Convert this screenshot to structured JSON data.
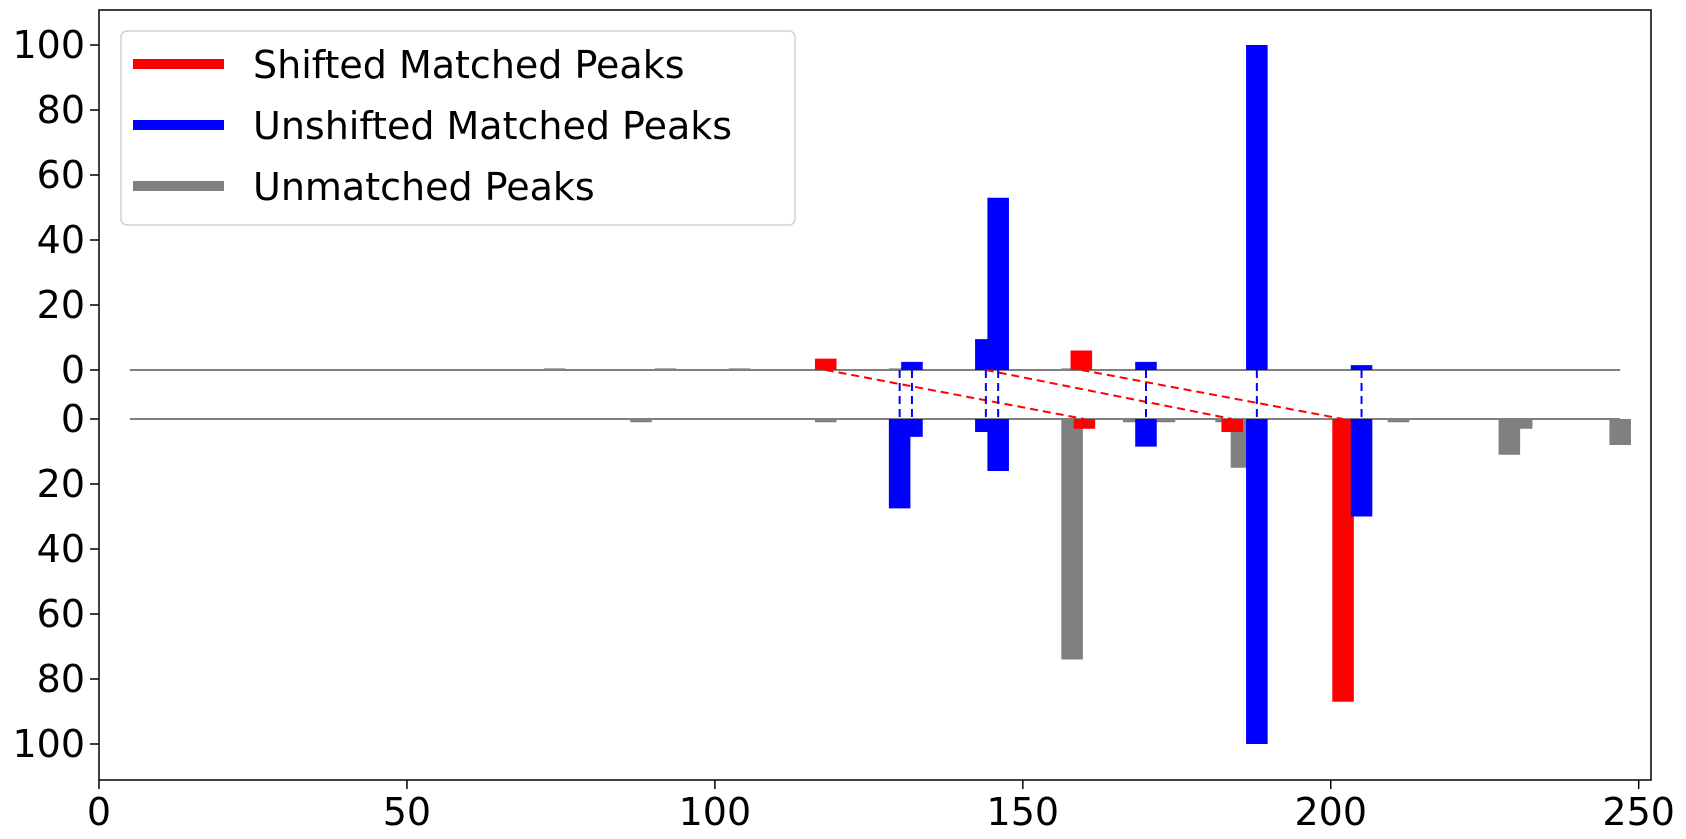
{
  "chart_data": {
    "type": "bar",
    "title": "",
    "xlabel": "",
    "ylabel": "",
    "xlim": [
      0,
      252
    ],
    "xticks": [
      0,
      50,
      100,
      150,
      200,
      250
    ],
    "top_panel": {
      "ylim": [
        0,
        110
      ],
      "yticks": [
        0,
        20,
        40,
        60,
        80,
        100
      ]
    },
    "bottom_panel": {
      "ylim": [
        0,
        110
      ],
      "yticks": [
        0,
        20,
        40,
        60,
        80,
        100
      ]
    },
    "bar_width": 3.5,
    "grid": false,
    "legend": {
      "position": "top-left",
      "entries": [
        {
          "label": "Shifted Matched Peaks",
          "color": "#ff0000"
        },
        {
          "label": "Unshifted Matched Peaks",
          "color": "#0000ff"
        },
        {
          "label": "Unmatched Peaks",
          "color": "#808080"
        }
      ]
    },
    "colors": {
      "shifted": "#ff0000",
      "unshifted": "#0000ff",
      "unmatched": "#808080",
      "baseline": "#808080"
    },
    "top_peaks": [
      {
        "x": 74,
        "y": 0.5,
        "category": "unmatched"
      },
      {
        "x": 92,
        "y": 0.5,
        "category": "unmatched"
      },
      {
        "x": 104,
        "y": 0.5,
        "category": "unmatched"
      },
      {
        "x": 118,
        "y": 3.5,
        "category": "shifted"
      },
      {
        "x": 130,
        "y": 0.5,
        "category": "unmatched"
      },
      {
        "x": 132,
        "y": 2.5,
        "category": "unshifted"
      },
      {
        "x": 144,
        "y": 9.5,
        "category": "unshifted"
      },
      {
        "x": 146,
        "y": 53,
        "category": "unshifted"
      },
      {
        "x": 158,
        "y": 0.5,
        "category": "unmatched"
      },
      {
        "x": 159.5,
        "y": 6,
        "category": "shifted"
      },
      {
        "x": 170,
        "y": 2.5,
        "category": "unshifted"
      },
      {
        "x": 188,
        "y": 100,
        "category": "unshifted"
      },
      {
        "x": 205,
        "y": 1.5,
        "category": "unshifted"
      }
    ],
    "bottom_peaks": [
      {
        "x": 88,
        "y": 1,
        "category": "unmatched"
      },
      {
        "x": 118,
        "y": 1,
        "category": "unmatched"
      },
      {
        "x": 130,
        "y": 27.5,
        "category": "unshifted"
      },
      {
        "x": 132,
        "y": 5.5,
        "category": "unshifted"
      },
      {
        "x": 144,
        "y": 4,
        "category": "unshifted"
      },
      {
        "x": 146,
        "y": 16,
        "category": "unshifted"
      },
      {
        "x": 158,
        "y": 74,
        "category": "unmatched"
      },
      {
        "x": 160,
        "y": 3,
        "category": "shifted"
      },
      {
        "x": 168,
        "y": 1,
        "category": "unmatched"
      },
      {
        "x": 170,
        "y": 8.5,
        "category": "unshifted"
      },
      {
        "x": 173,
        "y": 1,
        "category": "unmatched"
      },
      {
        "x": 183,
        "y": 1,
        "category": "unmatched"
      },
      {
        "x": 184,
        "y": 4,
        "category": "shifted"
      },
      {
        "x": 185.5,
        "y": 15,
        "category": "unmatched"
      },
      {
        "x": 188,
        "y": 100,
        "category": "unshifted"
      },
      {
        "x": 202,
        "y": 87,
        "category": "shifted"
      },
      {
        "x": 205,
        "y": 30,
        "category": "unshifted"
      },
      {
        "x": 211,
        "y": 1,
        "category": "unmatched"
      },
      {
        "x": 229,
        "y": 11,
        "category": "unmatched"
      },
      {
        "x": 231,
        "y": 3,
        "category": "unmatched"
      },
      {
        "x": 247,
        "y": 8,
        "category": "unmatched"
      }
    ],
    "shifted_links": [
      {
        "x_top": 118,
        "x_bottom": 160
      },
      {
        "x_top": 144,
        "x_bottom": 184
      },
      {
        "x_top": 159.5,
        "x_bottom": 202
      }
    ],
    "unshifted_links": [
      130,
      132,
      144,
      146,
      170,
      188,
      205
    ]
  }
}
